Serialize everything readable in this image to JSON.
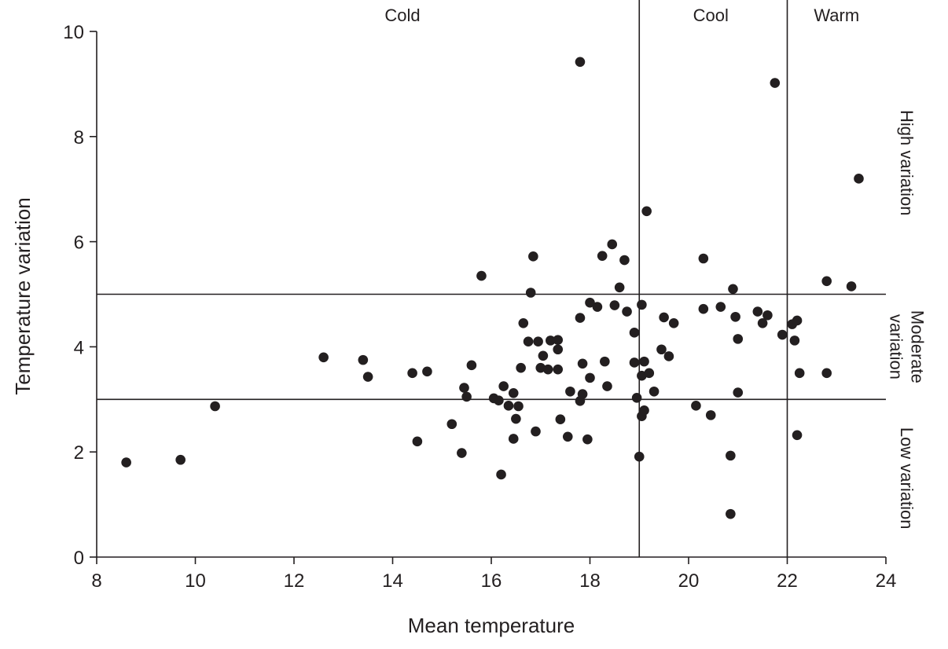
{
  "chart_data": {
    "type": "scatter",
    "xlabel": "Mean temperature",
    "ylabel": "Temperature variation",
    "xlim": [
      8,
      24
    ],
    "ylim": [
      0,
      10
    ],
    "xticks": [
      8,
      10,
      12,
      14,
      16,
      18,
      20,
      22,
      24
    ],
    "yticks": [
      0,
      2,
      4,
      6,
      8,
      10
    ],
    "grid": false,
    "marker_color": "#231f20",
    "reference_lines": {
      "vertical": [
        19,
        22
      ],
      "horizontal": [
        3,
        5
      ]
    },
    "region_labels": {
      "top": [
        {
          "text": "Cold",
          "x": 14.2
        },
        {
          "text": "Cool",
          "x": 20.45
        },
        {
          "text": "Warm",
          "x": 23.0
        }
      ],
      "right": [
        {
          "lines": [
            "High variation"
          ],
          "y": 7.5
        },
        {
          "lines": [
            "Moderate",
            "variation"
          ],
          "y": 4.0
        },
        {
          "lines": [
            "Low variation"
          ],
          "y": 1.5
        }
      ]
    },
    "points": [
      [
        8.6,
        1.8
      ],
      [
        9.7,
        1.85
      ],
      [
        10.4,
        2.87
      ],
      [
        12.6,
        3.8
      ],
      [
        13.4,
        3.75
      ],
      [
        13.5,
        3.43
      ],
      [
        14.4,
        3.5
      ],
      [
        14.5,
        2.2
      ],
      [
        14.7,
        3.53
      ],
      [
        15.2,
        2.53
      ],
      [
        15.4,
        1.98
      ],
      [
        15.45,
        3.22
      ],
      [
        15.5,
        3.05
      ],
      [
        15.6,
        3.65
      ],
      [
        15.8,
        5.35
      ],
      [
        16.05,
        3.02
      ],
      [
        16.15,
        2.98
      ],
      [
        16.2,
        1.57
      ],
      [
        16.25,
        3.25
      ],
      [
        16.35,
        2.88
      ],
      [
        16.45,
        3.12
      ],
      [
        16.45,
        2.25
      ],
      [
        16.5,
        2.63
      ],
      [
        16.55,
        2.87
      ],
      [
        16.6,
        3.6
      ],
      [
        16.65,
        4.45
      ],
      [
        16.75,
        4.1
      ],
      [
        16.8,
        5.03
      ],
      [
        16.85,
        5.72
      ],
      [
        16.9,
        2.39
      ],
      [
        16.95,
        4.1
      ],
      [
        17.0,
        3.6
      ],
      [
        17.05,
        3.83
      ],
      [
        17.15,
        3.57
      ],
      [
        17.2,
        4.12
      ],
      [
        17.35,
        4.13
      ],
      [
        17.35,
        3.95
      ],
      [
        17.35,
        3.57
      ],
      [
        17.4,
        2.62
      ],
      [
        17.55,
        2.29
      ],
      [
        17.6,
        3.15
      ],
      [
        17.8,
        9.42
      ],
      [
        17.8,
        4.55
      ],
      [
        17.8,
        2.97
      ],
      [
        17.85,
        3.1
      ],
      [
        17.85,
        3.68
      ],
      [
        17.95,
        2.24
      ],
      [
        18.0,
        3.41
      ],
      [
        18.0,
        4.84
      ],
      [
        18.15,
        4.76
      ],
      [
        18.25,
        5.73
      ],
      [
        18.3,
        3.72
      ],
      [
        18.35,
        3.25
      ],
      [
        18.45,
        5.95
      ],
      [
        18.5,
        4.79
      ],
      [
        18.6,
        5.13
      ],
      [
        18.7,
        5.65
      ],
      [
        18.75,
        4.67
      ],
      [
        18.9,
        4.27
      ],
      [
        18.9,
        3.7
      ],
      [
        18.95,
        3.03
      ],
      [
        19.0,
        1.91
      ],
      [
        19.05,
        4.8
      ],
      [
        19.05,
        3.45
      ],
      [
        19.05,
        2.68
      ],
      [
        19.1,
        3.72
      ],
      [
        19.1,
        2.79
      ],
      [
        19.15,
        6.58
      ],
      [
        19.2,
        3.5
      ],
      [
        19.3,
        3.15
      ],
      [
        19.45,
        3.95
      ],
      [
        19.5,
        4.56
      ],
      [
        19.6,
        3.82
      ],
      [
        19.7,
        4.45
      ],
      [
        20.15,
        2.88
      ],
      [
        20.3,
        5.68
      ],
      [
        20.3,
        4.72
      ],
      [
        20.45,
        2.7
      ],
      [
        20.65,
        4.76
      ],
      [
        20.85,
        1.93
      ],
      [
        20.85,
        0.82
      ],
      [
        20.9,
        5.1
      ],
      [
        20.95,
        4.57
      ],
      [
        21.0,
        4.15
      ],
      [
        21.0,
        3.13
      ],
      [
        21.4,
        4.67
      ],
      [
        21.5,
        4.45
      ],
      [
        21.6,
        4.6
      ],
      [
        21.75,
        9.02
      ],
      [
        21.9,
        4.23
      ],
      [
        22.1,
        4.43
      ],
      [
        22.15,
        4.12
      ],
      [
        22.2,
        4.5
      ],
      [
        22.2,
        2.32
      ],
      [
        22.25,
        3.5
      ],
      [
        22.8,
        5.25
      ],
      [
        22.8,
        3.5
      ],
      [
        23.3,
        5.15
      ],
      [
        23.45,
        7.2
      ]
    ]
  }
}
